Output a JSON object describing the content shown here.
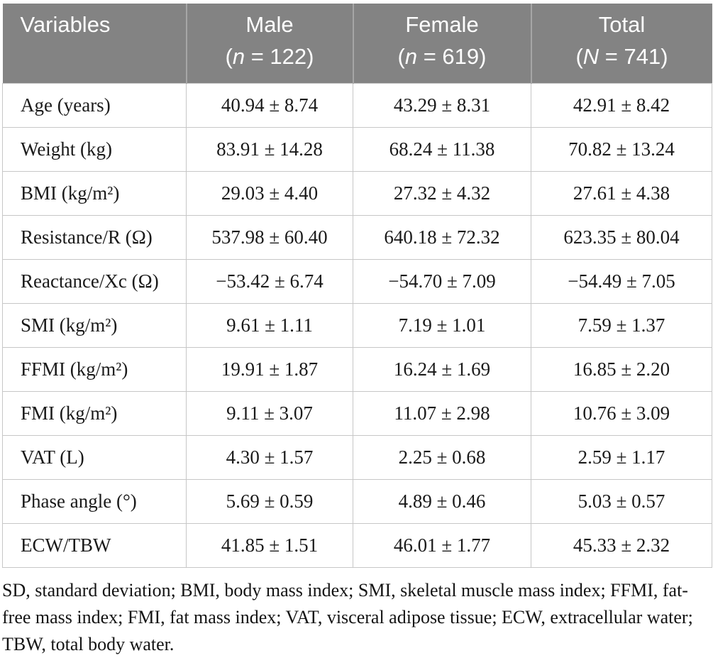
{
  "colors": {
    "header_bg": "#838383",
    "header_text": "#ffffff",
    "header_divider": "#a6a6a6",
    "cell_border": "#c7c7c7",
    "body_text": "#1a1a1a"
  },
  "table": {
    "columns": [
      {
        "title": "Variables"
      },
      {
        "title": "Male",
        "sub_pre": "(",
        "sub_var": "n",
        "sub_post": " = 122)"
      },
      {
        "title": "Female",
        "sub_pre": "(",
        "sub_var": "n",
        "sub_post": " = 619)"
      },
      {
        "title": "Total",
        "sub_pre": "(",
        "sub_var": "N",
        "sub_post": " = 741)"
      }
    ],
    "rows": [
      {
        "variable": "Age (years)",
        "male": "40.94 ± 8.74",
        "female": "43.29 ± 8.31",
        "total": "42.91 ± 8.42"
      },
      {
        "variable": "Weight (kg)",
        "male": "83.91 ± 14.28",
        "female": "68.24 ± 11.38",
        "total": "70.82 ± 13.24"
      },
      {
        "variable": "BMI (kg/m²)",
        "male": "29.03 ± 4.40",
        "female": "27.32 ± 4.32",
        "total": "27.61 ± 4.38"
      },
      {
        "variable": "Resistance/R (Ω)",
        "male": "537.98 ± 60.40",
        "female": "640.18 ± 72.32",
        "total": "623.35 ± 80.04"
      },
      {
        "variable": "Reactance/Xc (Ω)",
        "male": "−53.42 ± 6.74",
        "female": "−54.70 ± 7.09",
        "total": "−54.49 ± 7.05"
      },
      {
        "variable": "SMI (kg/m²)",
        "male": "9.61 ± 1.11",
        "female": "7.19 ± 1.01",
        "total": "7.59 ± 1.37"
      },
      {
        "variable": "FFMI (kg/m²)",
        "male": "19.91 ± 1.87",
        "female": "16.24 ± 1.69",
        "total": "16.85 ± 2.20"
      },
      {
        "variable": "FMI (kg/m²)",
        "male": "9.11 ± 3.07",
        "female": "11.07 ± 2.98",
        "total": "10.76 ± 3.09"
      },
      {
        "variable": "VAT (L)",
        "male": "4.30 ± 1.57",
        "female": "2.25 ± 0.68",
        "total": "2.59 ± 1.17"
      },
      {
        "variable": "Phase angle (°)",
        "male": "5.69 ± 0.59",
        "female": "4.89 ± 0.46",
        "total": "5.03 ± 0.57"
      },
      {
        "variable": "ECW/TBW",
        "male": "41.85 ± 1.51",
        "female": "46.01 ± 1.77",
        "total": "45.33 ± 2.32"
      }
    ]
  },
  "footnote": "SD, standard deviation; BMI, body mass index; SMI, skeletal muscle mass index; FFMI, fat-free mass index; FMI, fat mass index; VAT, visceral adipose tissue; ECW, extracellular water; TBW, total body water."
}
